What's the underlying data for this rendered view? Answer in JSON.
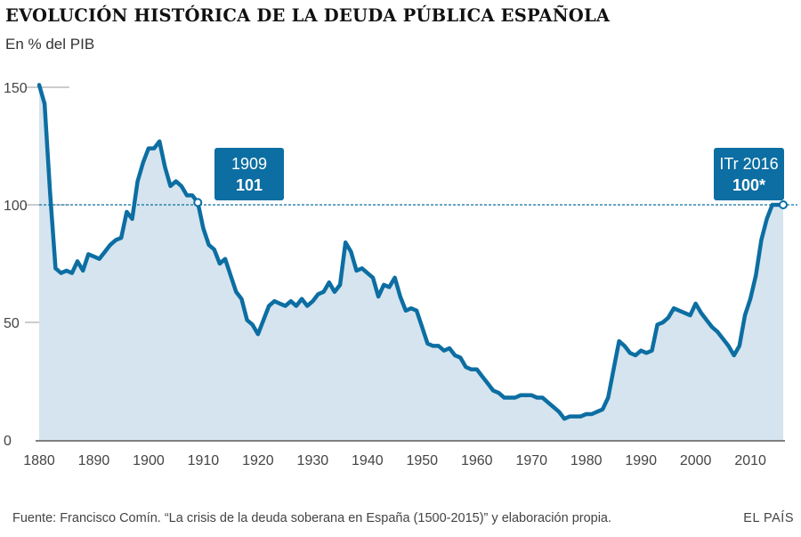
{
  "header": {
    "title": "EVOLUCIÓN HISTÓRICA DE LA DEUDA PÚBLICA ESPAÑOLA",
    "subtitle": "En % del PIB"
  },
  "footer": {
    "source": "Fuente: Francisco Comín. “La crisis de la deuda soberana en España (1500-2015)” y elaboración propia.",
    "brand": "EL PAÍS"
  },
  "colors": {
    "line": "#0c6ea2",
    "area": "#d5e4ee",
    "callout": "#0c6ea2",
    "grid": "#9a9a9a"
  },
  "chart_data": {
    "type": "area",
    "title": "EVOLUCIÓN HISTÓRICA DE LA DEUDA PÚBLICA ESPAÑOLA",
    "subtitle": "En % del PIB",
    "xlabel": "",
    "ylabel": "",
    "xlim": [
      1880,
      2016
    ],
    "ylim": [
      0,
      150
    ],
    "x_ticks": [
      1880,
      1890,
      1900,
      1910,
      1920,
      1930,
      1940,
      1950,
      1960,
      1970,
      1980,
      1990,
      2000,
      2010
    ],
    "y_ticks": [
      0,
      50,
      100,
      150
    ],
    "reference_line": {
      "y": 100,
      "style": "dashed"
    },
    "series": [
      {
        "x": [
          1880,
          1881,
          1882,
          1883,
          1884,
          1885,
          1886,
          1887,
          1888,
          1889,
          1890,
          1891,
          1892,
          1893,
          1894,
          1895,
          1896,
          1897,
          1898,
          1899,
          1900,
          1901,
          1902,
          1903,
          1904,
          1905,
          1906,
          1907,
          1908,
          1909,
          1910,
          1911,
          1912,
          1913,
          1914,
          1915,
          1916,
          1917,
          1918,
          1919,
          1920,
          1921,
          1922,
          1923,
          1924,
          1925,
          1926,
          1927,
          1928,
          1929,
          1930,
          1931,
          1932,
          1933,
          1934,
          1935,
          1936,
          1937,
          1938,
          1939,
          1940,
          1941,
          1942,
          1943,
          1944,
          1945,
          1946,
          1947,
          1948,
          1949,
          1950,
          1951,
          1952,
          1953,
          1954,
          1955,
          1956,
          1957,
          1958,
          1959,
          1960,
          1961,
          1962,
          1963,
          1964,
          1965,
          1966,
          1967,
          1968,
          1969,
          1970,
          1971,
          1972,
          1973,
          1974,
          1975,
          1976,
          1977,
          1978,
          1979,
          1980,
          1981,
          1982,
          1983,
          1984,
          1985,
          1986,
          1987,
          1988,
          1989,
          1990,
          1991,
          1992,
          1993,
          1994,
          1995,
          1996,
          1997,
          1998,
          1999,
          2000,
          2001,
          2002,
          2003,
          2004,
          2005,
          2006,
          2007,
          2008,
          2009,
          2010,
          2011,
          2012,
          2013,
          2014,
          2015,
          2016
        ],
        "values": [
          151,
          143,
          105,
          73,
          71,
          72,
          71,
          76,
          72,
          79,
          78,
          77,
          80,
          83,
          85,
          86,
          97,
          94,
          110,
          118,
          124,
          124,
          127,
          116,
          108,
          110,
          108,
          104,
          104,
          101,
          90,
          83,
          81,
          75,
          77,
          70,
          63,
          60,
          51,
          49,
          45,
          51,
          57,
          59,
          58,
          57,
          59,
          57,
          60,
          57,
          59,
          62,
          63,
          67,
          63,
          66,
          84,
          80,
          72,
          73,
          71,
          69,
          61,
          66,
          65,
          69,
          61,
          55,
          56,
          55,
          48,
          41,
          40,
          40,
          38,
          39,
          36,
          35,
          31,
          30,
          30,
          27,
          24,
          21,
          20,
          18,
          18,
          18,
          19,
          19,
          19,
          18,
          18,
          16,
          14,
          12,
          9,
          10,
          10,
          10,
          11,
          11,
          12,
          13,
          18,
          30,
          42,
          40,
          37,
          36,
          38,
          37,
          38,
          49,
          50,
          52,
          56,
          55,
          54,
          53,
          58,
          54,
          51,
          48,
          46,
          43,
          40,
          36,
          40,
          53,
          60,
          70,
          85,
          94,
          100,
          100,
          100
        ]
      }
    ],
    "callouts": [
      {
        "year_label": "1909",
        "value_label": "101",
        "x": 1909,
        "y": 101
      },
      {
        "year_label": "ITr 2016",
        "value_label": "100*",
        "x": 2016,
        "y": 100
      }
    ]
  }
}
